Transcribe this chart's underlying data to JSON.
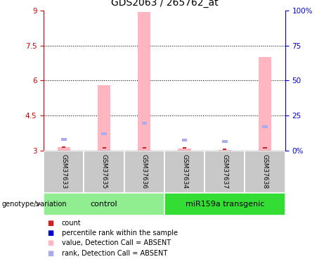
{
  "title": "GDS2063 / 265762_at",
  "samples": [
    "GSM37633",
    "GSM37635",
    "GSM37636",
    "GSM37634",
    "GSM37637",
    "GSM37638"
  ],
  "ylim_left": [
    3.0,
    9.0
  ],
  "ylim_right": [
    0,
    100
  ],
  "yticks_left": [
    3.0,
    4.5,
    6.0,
    7.5,
    9.0
  ],
  "yticks_right": [
    0,
    25,
    50,
    75,
    100
  ],
  "ytick_labels_left": [
    "3",
    "4.5",
    "6",
    "7.5",
    "9"
  ],
  "ytick_labels_right": [
    "0%",
    "25",
    "50",
    "75",
    "100%"
  ],
  "bar_values": [
    3.15,
    5.8,
    8.95,
    3.08,
    3.02,
    7.0
  ],
  "bar_color": "#FFB6C1",
  "rank_values": [
    3.42,
    3.65,
    4.1,
    3.37,
    3.33,
    3.95
  ],
  "rank_color": "#AAAAEE",
  "count_values": [
    3.1,
    3.07,
    3.07,
    3.09,
    3.03,
    3.07
  ],
  "count_color": "#CC2222",
  "grid_yticks": [
    4.5,
    6.0,
    7.5
  ],
  "title_fontsize": 10,
  "axis_color_left": "#CC0000",
  "axis_color_right": "#0000CC",
  "bg_color_control": "#90EE90",
  "bg_color_transgenic": "#33DD33",
  "sample_bg_color": "#C8C8C8",
  "legend_items": [
    [
      "#CC2222",
      "count"
    ],
    [
      "#0000CC",
      "percentile rank within the sample"
    ],
    [
      "#FFB6C1",
      "value, Detection Call = ABSENT"
    ],
    [
      "#AAAAEE",
      "rank, Detection Call = ABSENT"
    ]
  ]
}
